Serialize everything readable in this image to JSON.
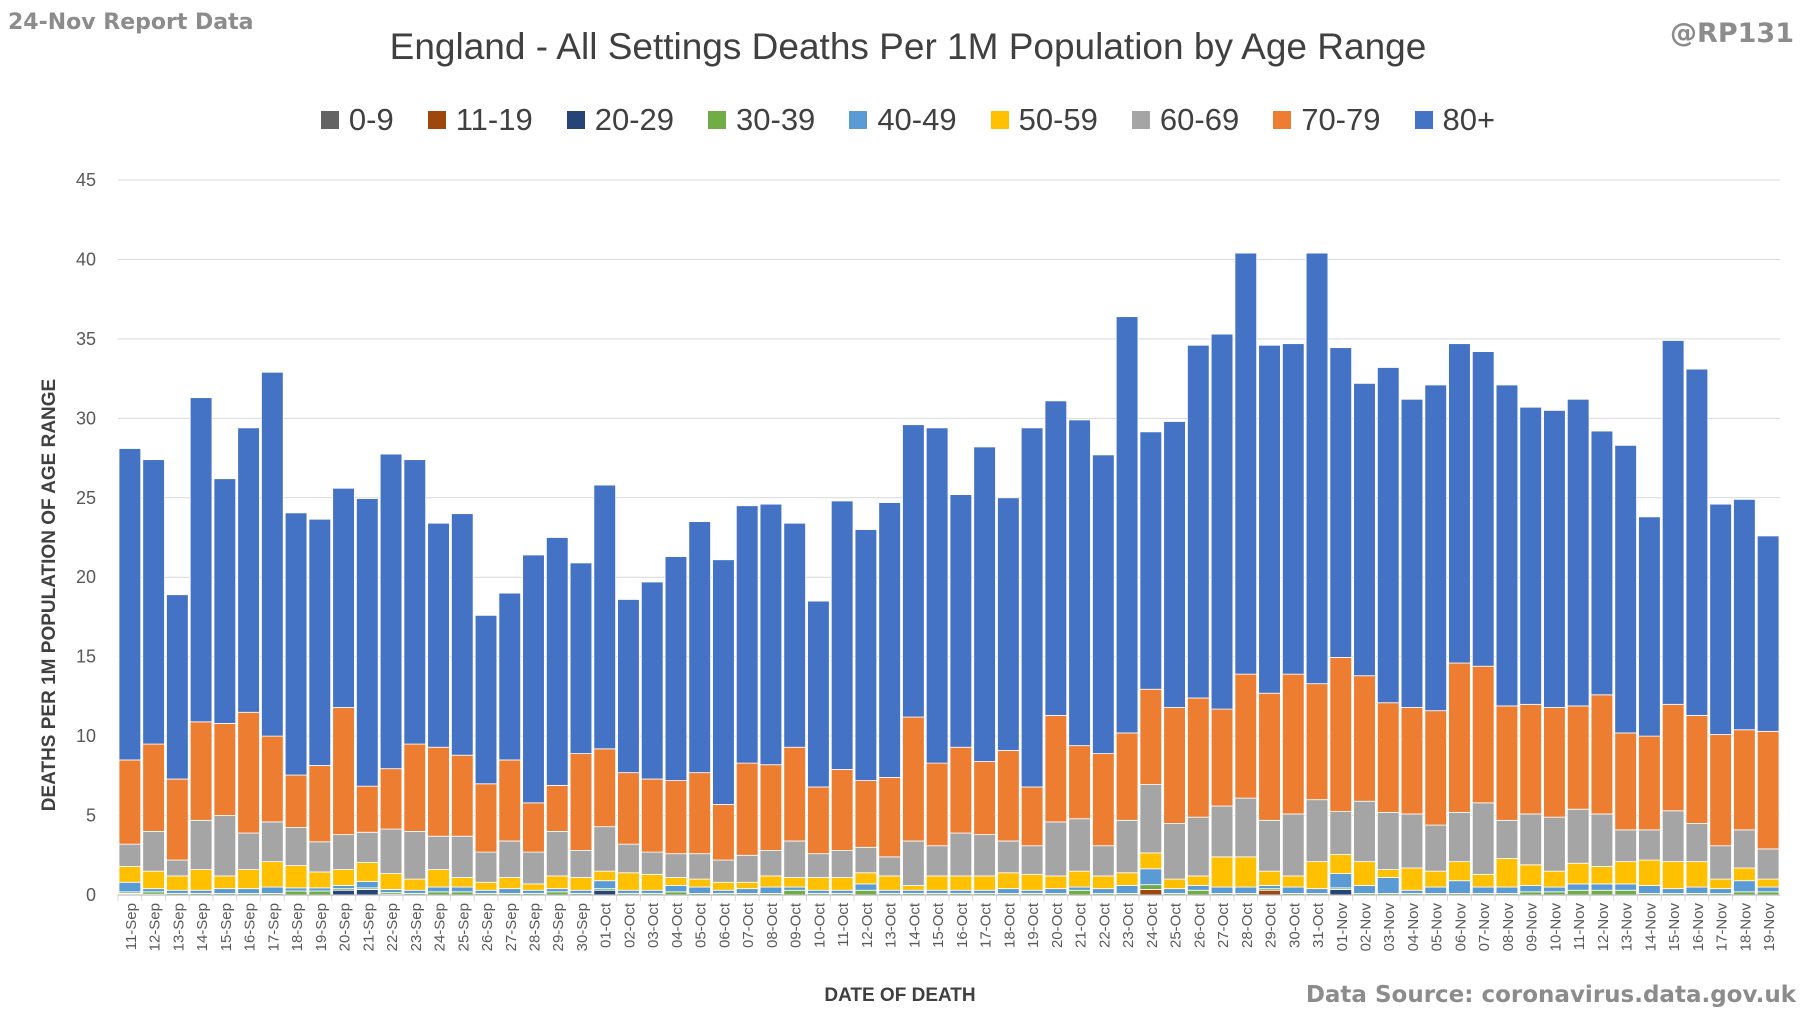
{
  "header": {
    "report_label": "24-Nov Report Data",
    "handle": "@RP131",
    "source": "Data Source: coronavirus.data.gov.uk"
  },
  "chart_data": {
    "type": "bar",
    "stacked": true,
    "title": "England - All Settings Deaths Per 1M Population by Age Range",
    "xlabel": "DATE OF DEATH",
    "ylabel": "DEATHS PER 1M POPULATION OF AGE RANGE",
    "ylim": [
      0,
      45
    ],
    "yticks": [
      0,
      5,
      10,
      15,
      20,
      25,
      30,
      35,
      40,
      45
    ],
    "grid": true,
    "legend_position": "top",
    "categories": [
      "11-Sep",
      "12-Sep",
      "13-Sep",
      "14-Sep",
      "15-Sep",
      "16-Sep",
      "17-Sep",
      "18-Sep",
      "19-Sep",
      "20-Sep",
      "21-Sep",
      "22-Sep",
      "23-Sep",
      "24-Sep",
      "25-Sep",
      "26-Sep",
      "27-Sep",
      "28-Sep",
      "29-Sep",
      "30-Sep",
      "01-Oct",
      "02-Oct",
      "03-Oct",
      "04-Oct",
      "05-Oct",
      "06-Oct",
      "07-Oct",
      "08-Oct",
      "09-Oct",
      "10-Oct",
      "11-Oct",
      "12-Oct",
      "13-Oct",
      "14-Oct",
      "15-Oct",
      "16-Oct",
      "17-Oct",
      "18-Oct",
      "19-Oct",
      "20-Oct",
      "21-Oct",
      "22-Oct",
      "23-Oct",
      "24-Oct",
      "25-Oct",
      "26-Oct",
      "27-Oct",
      "28-Oct",
      "29-Oct",
      "30-Oct",
      "31-Oct",
      "01-Nov",
      "02-Nov",
      "03-Nov",
      "04-Nov",
      "05-Nov",
      "06-Nov",
      "07-Nov",
      "08-Nov",
      "09-Nov",
      "10-Nov",
      "11-Nov",
      "12-Nov",
      "13-Nov",
      "14-Nov",
      "15-Nov",
      "16-Nov",
      "17-Nov",
      "18-Nov",
      "19-Nov"
    ],
    "series": [
      {
        "name": "0-9",
        "color": "#636363",
        "values": [
          0.05,
          0.05,
          0,
          0,
          0,
          0,
          0,
          0,
          0,
          0,
          0,
          0.05,
          0,
          0,
          0,
          0,
          0,
          0,
          0,
          0,
          0,
          0,
          0,
          0,
          0,
          0,
          0,
          0,
          0,
          0,
          0,
          0,
          0,
          0,
          0,
          0,
          0,
          0,
          0,
          0,
          0,
          0,
          0,
          0,
          0,
          0,
          0,
          0,
          0,
          0,
          0,
          0,
          0,
          0,
          0,
          0,
          0,
          0,
          0,
          0,
          0,
          0,
          0,
          0,
          0,
          0,
          0,
          0,
          0,
          0
        ]
      },
      {
        "name": "11-19",
        "color": "#9e480e",
        "values": [
          0,
          0,
          0,
          0,
          0,
          0,
          0,
          0,
          0,
          0,
          0,
          0,
          0,
          0,
          0,
          0,
          0,
          0,
          0,
          0,
          0,
          0,
          0,
          0,
          0,
          0,
          0,
          0,
          0,
          0,
          0,
          0,
          0,
          0,
          0,
          0,
          0,
          0,
          0,
          0,
          0,
          0,
          0,
          0.35,
          0,
          0,
          0,
          0,
          0.3,
          0,
          0,
          0,
          0,
          0,
          0,
          0,
          0,
          0,
          0,
          0,
          0,
          0,
          0,
          0,
          0,
          0,
          0,
          0,
          0,
          0
        ]
      },
      {
        "name": "20-29",
        "color": "#264478",
        "values": [
          0.05,
          0,
          0,
          0,
          0,
          0,
          0,
          0,
          0,
          0.3,
          0.35,
          0,
          0,
          0,
          0,
          0,
          0,
          0,
          0,
          0,
          0.3,
          0,
          0,
          0,
          0,
          0,
          0,
          0,
          0,
          0,
          0,
          0,
          0,
          0,
          0,
          0,
          0,
          0,
          0,
          0,
          0,
          0,
          0,
          0,
          0,
          0,
          0,
          0,
          0,
          0,
          0,
          0.35,
          0,
          0,
          0,
          0,
          0,
          0,
          0,
          0,
          0,
          0,
          0,
          0,
          0,
          0,
          0,
          0,
          0,
          0
        ]
      },
      {
        "name": "30-39",
        "color": "#70ad47",
        "values": [
          0.1,
          0.15,
          0.1,
          0.1,
          0.1,
          0.1,
          0.1,
          0.25,
          0.25,
          0.1,
          0.1,
          0.1,
          0.1,
          0.2,
          0.2,
          0.1,
          0.1,
          0.1,
          0.2,
          0.1,
          0.1,
          0.1,
          0.1,
          0.2,
          0.1,
          0.1,
          0.1,
          0.1,
          0.3,
          0.1,
          0.1,
          0.3,
          0.1,
          0.1,
          0.1,
          0.1,
          0.1,
          0.1,
          0.1,
          0.1,
          0.3,
          0.1,
          0.1,
          0.3,
          0.1,
          0.3,
          0.1,
          0.1,
          0.1,
          0.1,
          0.1,
          0.1,
          0.1,
          0.1,
          0.1,
          0.1,
          0.1,
          0.1,
          0.1,
          0.2,
          0.2,
          0.3,
          0.3,
          0.3,
          0.1,
          0.1,
          0.1,
          0.1,
          0.2,
          0.2
        ]
      },
      {
        "name": "40-49",
        "color": "#5b9bd5",
        "values": [
          0.6,
          0.2,
          0.2,
          0.2,
          0.3,
          0.3,
          0.4,
          0.2,
          0.2,
          0.2,
          0.4,
          0.2,
          0.2,
          0.3,
          0.3,
          0.2,
          0.3,
          0.2,
          0.2,
          0.2,
          0.5,
          0.2,
          0.2,
          0.4,
          0.4,
          0.2,
          0.3,
          0.4,
          0.2,
          0.2,
          0.2,
          0.4,
          0.2,
          0.2,
          0.2,
          0.2,
          0.2,
          0.3,
          0.2,
          0.3,
          0.2,
          0.3,
          0.5,
          1.0,
          0.3,
          0.3,
          0.4,
          0.4,
          0.2,
          0.4,
          0.3,
          0.9,
          0.5,
          1.0,
          0.2,
          0.4,
          0.8,
          0.4,
          0.4,
          0.4,
          0.3,
          0.4,
          0.4,
          0.4,
          0.5,
          0.3,
          0.4,
          0.3,
          0.7,
          0.3
        ]
      },
      {
        "name": "50-59",
        "color": "#ffc000",
        "values": [
          1.0,
          1.1,
          0.9,
          1.3,
          0.8,
          1.2,
          1.6,
          1.4,
          1.0,
          1.0,
          1.2,
          1.0,
          0.7,
          1.1,
          0.6,
          0.5,
          0.7,
          0.4,
          0.8,
          0.8,
          0.6,
          1.1,
          1.0,
          0.5,
          0.5,
          0.5,
          0.4,
          0.7,
          0.6,
          0.8,
          0.8,
          0.7,
          0.9,
          0.3,
          0.9,
          0.9,
          0.9,
          1.0,
          1.0,
          0.8,
          1.0,
          0.8,
          0.8,
          1.0,
          0.6,
          0.6,
          1.9,
          1.9,
          0.9,
          0.7,
          1.7,
          1.2,
          1.5,
          0.5,
          1.4,
          1.0,
          1.2,
          0.8,
          1.8,
          1.3,
          1.0,
          1.3,
          1.1,
          1.4,
          1.6,
          1.7,
          1.6,
          0.6,
          0.8,
          0.5
        ]
      },
      {
        "name": "60-69",
        "color": "#a5a5a5",
        "values": [
          1.4,
          2.5,
          1.0,
          3.1,
          3.8,
          2.3,
          2.5,
          2.4,
          1.9,
          2.2,
          1.9,
          2.8,
          3.0,
          2.1,
          2.6,
          1.9,
          2.3,
          2.0,
          2.8,
          1.7,
          2.8,
          1.8,
          1.4,
          1.5,
          1.6,
          1.4,
          1.7,
          1.6,
          2.3,
          1.5,
          1.7,
          1.6,
          1.2,
          2.8,
          1.9,
          2.7,
          2.6,
          2.0,
          1.8,
          3.4,
          3.3,
          1.9,
          3.3,
          4.3,
          3.5,
          3.7,
          3.2,
          3.7,
          3.2,
          3.9,
          3.9,
          2.7,
          3.8,
          3.6,
          3.4,
          2.9,
          3.1,
          4.5,
          2.4,
          3.2,
          3.4,
          3.4,
          3.3,
          2.0,
          1.9,
          3.2,
          2.4,
          2.1,
          2.4,
          1.9
        ]
      },
      {
        "name": "70-79",
        "color": "#ed7d31",
        "values": [
          5.3,
          5.5,
          5.1,
          6.2,
          5.8,
          7.6,
          5.4,
          3.3,
          4.8,
          8.0,
          2.9,
          3.8,
          5.5,
          5.6,
          5.1,
          4.3,
          5.1,
          3.1,
          2.9,
          6.1,
          4.9,
          4.5,
          4.6,
          4.6,
          5.1,
          3.5,
          5.8,
          5.4,
          5.9,
          4.2,
          5.1,
          4.2,
          5.0,
          7.8,
          5.2,
          5.4,
          4.6,
          5.7,
          3.7,
          6.7,
          4.6,
          5.8,
          5.5,
          6.0,
          7.3,
          7.5,
          6.1,
          7.8,
          8.0,
          8.8,
          7.3,
          9.7,
          7.9,
          6.9,
          6.7,
          7.2,
          9.4,
          8.6,
          7.2,
          6.9,
          6.9,
          6.5,
          7.5,
          6.1,
          5.9,
          6.7,
          6.8,
          7.0,
          6.3,
          7.4
        ]
      },
      {
        "name": "80+",
        "color": "#4472c4",
        "values": [
          19.6,
          17.9,
          11.6,
          20.4,
          15.4,
          17.9,
          22.9,
          16.5,
          15.5,
          13.8,
          18.1,
          19.8,
          17.9,
          14.1,
          15.2,
          10.6,
          10.5,
          15.6,
          15.6,
          12.0,
          16.6,
          10.9,
          12.4,
          14.1,
          15.8,
          15.4,
          16.2,
          16.4,
          14.1,
          11.7,
          16.9,
          15.8,
          17.3,
          18.4,
          21.1,
          15.9,
          19.8,
          15.9,
          22.6,
          19.8,
          20.5,
          18.8,
          26.2,
          16.2,
          18.0,
          22.2,
          23.6,
          26.5,
          21.9,
          20.8,
          27.1,
          19.5,
          18.4,
          21.1,
          19.4,
          20.5,
          20.1,
          19.8,
          20.2,
          18.7,
          18.7,
          19.3,
          16.6,
          18.1,
          13.8,
          22.9,
          21.8,
          14.5,
          14.5,
          12.3
        ]
      }
    ]
  }
}
